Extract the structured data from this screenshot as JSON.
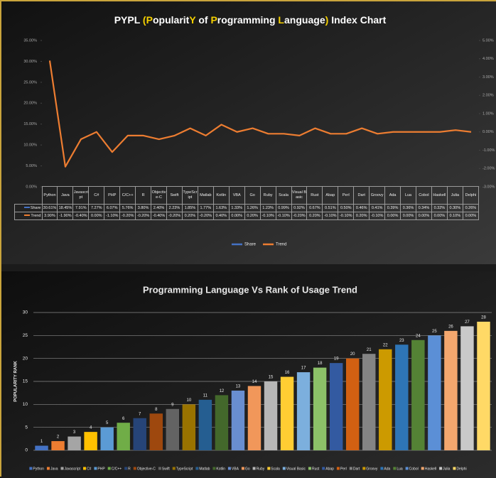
{
  "chart_data": [
    {
      "type": "line",
      "title": "PYPL (PopularitY of Programming Language) Index Chart",
      "categories": [
        "Python",
        "Java",
        "Javascript",
        "C#",
        "PHP",
        "C/C++",
        "R",
        "Objective-C",
        "Swift",
        "TypeScript",
        "Matlab",
        "Kotlin",
        "VBA",
        "Go",
        "Ruby",
        "Scala",
        "Visual Basic",
        "Rust",
        "Abap",
        "Perl",
        "Dart",
        "Groovy",
        "Ada",
        "Lua",
        "Cobol",
        "Haskell",
        "Julia",
        "Delphi"
      ],
      "series": [
        {
          "name": "Share",
          "color": "#4472c4",
          "values": [
            30.61,
            18.45,
            7.91,
            7.27,
            6.07,
            5.76,
            3.8,
            2.4,
            2.23,
            1.85,
            1.77,
            1.63,
            1.33,
            1.26,
            1.23,
            0.99,
            0.92,
            0.67,
            0.51,
            0.5,
            0.46,
            0.41,
            0.39,
            0.36,
            0.34,
            0.32,
            0.3,
            0.26
          ],
          "value_labels": [
            "30.61%",
            "18.45%",
            "7.91%",
            "7.27%",
            "6.07%",
            "5.76%",
            "3.80%",
            "2.40%",
            "2.23%",
            "1.85%",
            "1.77%",
            "1.63%",
            "1.33%",
            "1.26%",
            "1.23%",
            "0.99%",
            "0.92%",
            "0.67%",
            "0.51%",
            "0.50%",
            "0.46%",
            "0.41%",
            "0.39%",
            "0.36%",
            "0.34%",
            "0.32%",
            "0.30%",
            "0.26%"
          ]
        },
        {
          "name": "Trend",
          "color": "#ed7d31",
          "axis": "y2",
          "values": [
            3.9,
            -1.9,
            -0.4,
            0.0,
            -1.1,
            -0.2,
            -0.2,
            -0.4,
            -0.2,
            0.2,
            -0.2,
            0.4,
            0.0,
            0.2,
            -0.1,
            -0.1,
            -0.2,
            0.2,
            -0.1,
            -0.1,
            0.2,
            -0.1,
            0.0,
            0.0,
            0.0,
            0.0,
            0.1,
            0.0
          ],
          "value_labels": [
            "3.90%",
            "-1.90%",
            "-0.40%",
            "0.00%",
            "-1.10%",
            "-0.20%",
            "-0.20%",
            "-0.40%",
            "-0.20%",
            "0.20%",
            "-0.20%",
            "0.40%",
            "0.00%",
            "0.20%",
            "-0.10%",
            "-0.10%",
            "-0.20%",
            "0.20%",
            "-0.10%",
            "-0.10%",
            "0.20%",
            "-0.10%",
            "0.00%",
            "0.00%",
            "0.00%",
            "0.00%",
            "0.10%",
            "0.00%"
          ]
        }
      ],
      "ylim": [
        0,
        35
      ],
      "yticks": [
        {
          "value": 0,
          "label": "0.00%"
        },
        {
          "value": 5,
          "label": "5.00%"
        },
        {
          "value": 10,
          "label": "10.00%"
        },
        {
          "value": 15,
          "label": "15.00%"
        },
        {
          "value": 20,
          "label": "20.00%"
        },
        {
          "value": 25,
          "label": "25.00%"
        },
        {
          "value": 30,
          "label": "30.00%"
        },
        {
          "value": 35,
          "label": "35.00%"
        }
      ],
      "y2lim": [
        -3,
        5
      ],
      "y2ticks": [
        {
          "value": -3,
          "label": "-3.00%"
        },
        {
          "value": -2,
          "label": "-2.00%"
        },
        {
          "value": -1,
          "label": "-1.00%"
        },
        {
          "value": 0,
          "label": "0.00%"
        },
        {
          "value": 1,
          "label": "1.00%"
        },
        {
          "value": 2,
          "label": "2.00%"
        },
        {
          "value": 3,
          "label": "3.00%"
        },
        {
          "value": 4,
          "label": "4.00%"
        },
        {
          "value": 5,
          "label": "5.00%"
        }
      ],
      "legend": "bottom"
    },
    {
      "type": "bar",
      "title": "Programming Language Vs Rank of Usage Trend",
      "y_label": "POPULARITY RANK",
      "categories": [
        "Python",
        "Java",
        "Javascript",
        "C#",
        "PHP",
        "C/C++",
        "R",
        "Objective-C",
        "Swift",
        "TypeScript",
        "Matlab",
        "Kotlin",
        "VBA",
        "Go",
        "Ruby",
        "Scala",
        "Visual Basic",
        "Rust",
        "Abap",
        "Perl",
        "Dart",
        "Groovy",
        "Ada",
        "Lua",
        "Cobol",
        "Haskell",
        "Julia",
        "Delphi"
      ],
      "values": [
        1,
        2,
        3,
        4,
        5,
        6,
        7,
        8,
        9,
        10,
        11,
        12,
        13,
        14,
        15,
        16,
        17,
        18,
        19,
        20,
        21,
        22,
        23,
        24,
        25,
        26,
        27,
        28
      ],
      "colors": [
        "#4472c4",
        "#ed7d31",
        "#a5a5a5",
        "#ffc000",
        "#5b9bd5",
        "#70ad47",
        "#264478",
        "#9e480e",
        "#636363",
        "#997300",
        "#255e91",
        "#43682b",
        "#698ed0",
        "#f1975a",
        "#b7b7b7",
        "#ffcd33",
        "#7cafdd",
        "#8cc168",
        "#335aa1",
        "#d26012",
        "#848484",
        "#cc9a00",
        "#2e75b6",
        "#548235",
        "#5b8fd6",
        "#f4a76e",
        "#c9c9c9",
        "#ffd966"
      ],
      "ylim": [
        0,
        30
      ],
      "yticks": [
        0,
        5,
        10,
        15,
        20,
        25,
        30
      ],
      "grid": true,
      "legend": "bottom"
    }
  ]
}
